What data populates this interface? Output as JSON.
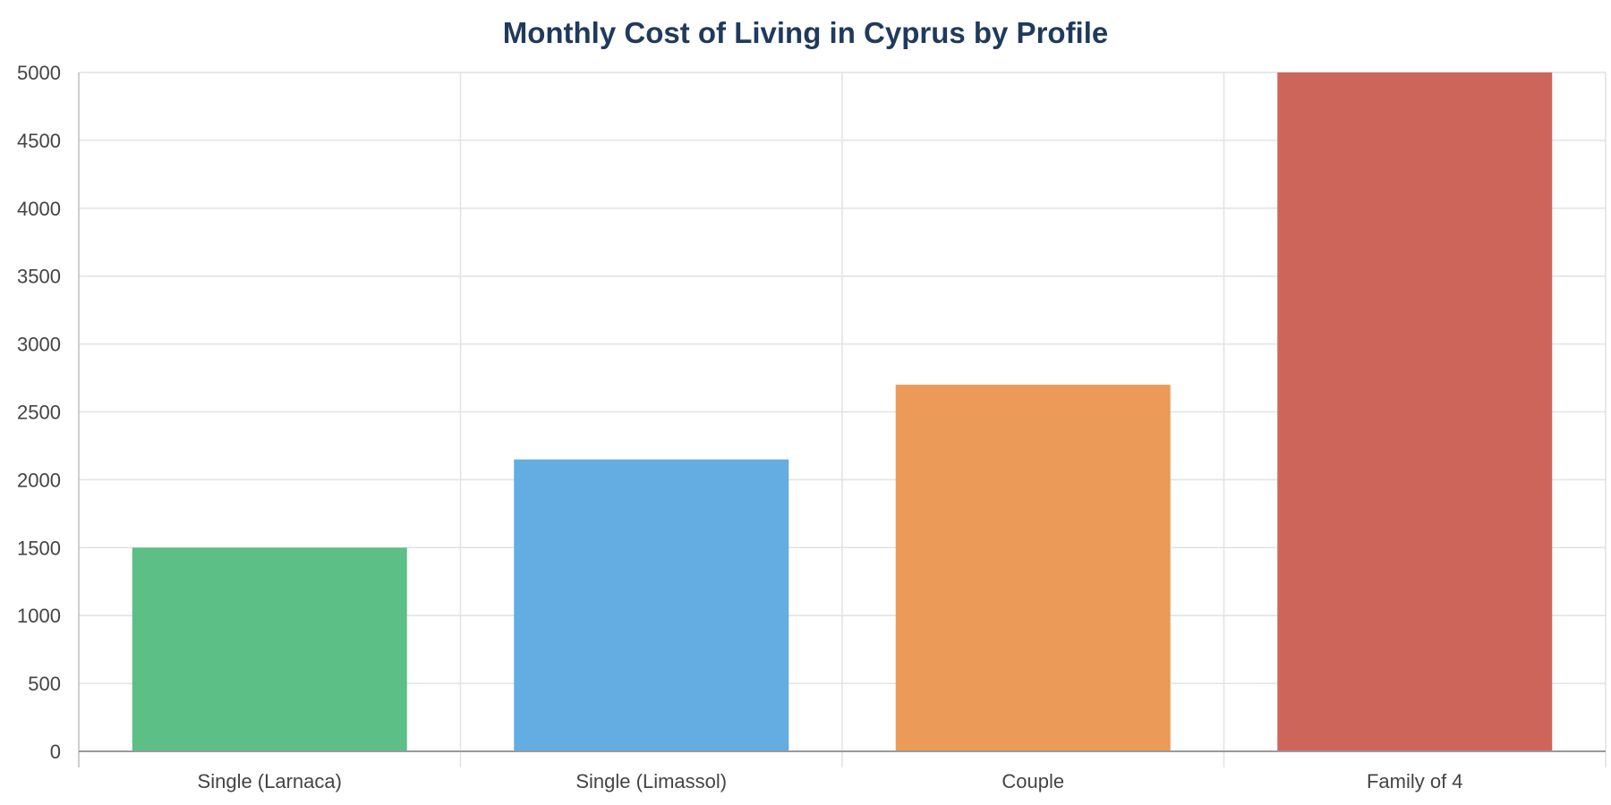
{
  "chart_data": {
    "type": "bar",
    "title": "Monthly Cost of Living in Cyprus by Profile",
    "xlabel": "",
    "ylabel": "",
    "categories": [
      "Single (Larnaca)",
      "Single (Limassol)",
      "Couple",
      "Family of 4"
    ],
    "values": [
      1500,
      2150,
      2700,
      5000
    ],
    "colors": [
      "#5cbf85",
      "#63ade2",
      "#eb9b57",
      "#ce655b"
    ],
    "ylim": [
      0,
      5000
    ],
    "yticks": [
      "0",
      "500",
      "1000",
      "1500",
      "2000",
      "2500",
      "3000",
      "3500",
      "4000",
      "4500",
      "5000"
    ],
    "grid": true,
    "legend": "none"
  }
}
